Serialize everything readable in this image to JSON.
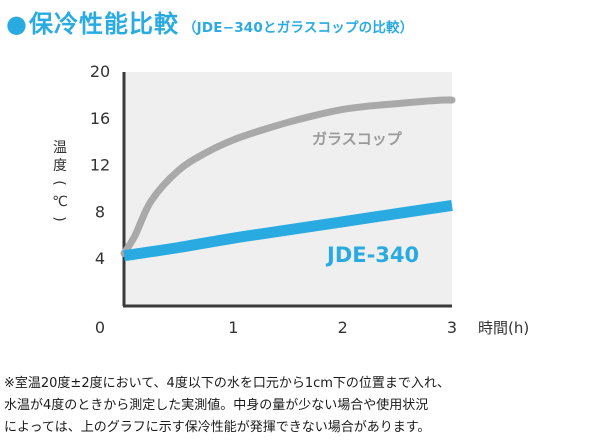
{
  "title": {
    "bullet": "●",
    "main": "保冷性能比較",
    "sub": "（JDE−340とガラスコップの比較）"
  },
  "colors": {
    "accent": "#29abe2",
    "glass": "#a9a9a9",
    "jde": "#29abe2",
    "plot_bg": "#efefef",
    "axis": "#3a3a3a"
  },
  "chart_data": {
    "type": "line",
    "title": "保冷性能比較（JDE−340とガラスコップの比較）",
    "xlabel": "時間(h)",
    "ylabel": "温度(℃)",
    "xlim": [
      0,
      3
    ],
    "ylim": [
      0,
      20
    ],
    "xticks": [
      "0",
      "1",
      "2",
      "3"
    ],
    "yticks": [
      "4",
      "8",
      "12",
      "16",
      "20"
    ],
    "grid": false,
    "series": [
      {
        "name": "ガラスコップ",
        "x": [
          0,
          0.1,
          0.25,
          0.5,
          0.75,
          1.0,
          1.25,
          1.5,
          1.75,
          2.0,
          2.25,
          2.5,
          2.75,
          2.9,
          3.0
        ],
        "y": [
          4.5,
          6.0,
          9.0,
          11.6,
          13.1,
          14.2,
          15.0,
          15.7,
          16.3,
          16.8,
          17.1,
          17.3,
          17.5,
          17.6,
          17.6
        ],
        "color": "#a9a9a9"
      },
      {
        "name": "JDE-340",
        "x": [
          0,
          0.5,
          1.0,
          1.5,
          2.0,
          2.5,
          3.0
        ],
        "y": [
          4.3,
          5.0,
          5.8,
          6.5,
          7.2,
          7.9,
          8.6
        ],
        "color": "#29abe2"
      }
    ]
  },
  "note": {
    "line1": "※室温20度±2度において、4度以下の水を口元から1cm下の位置まで入れ、",
    "line2": "水温が4度のときから測定した実測値。中身の量が少ない場合や使用状況",
    "line3": "によっては、上のグラフに示す保冷性能が発揮できない場合があります。"
  }
}
